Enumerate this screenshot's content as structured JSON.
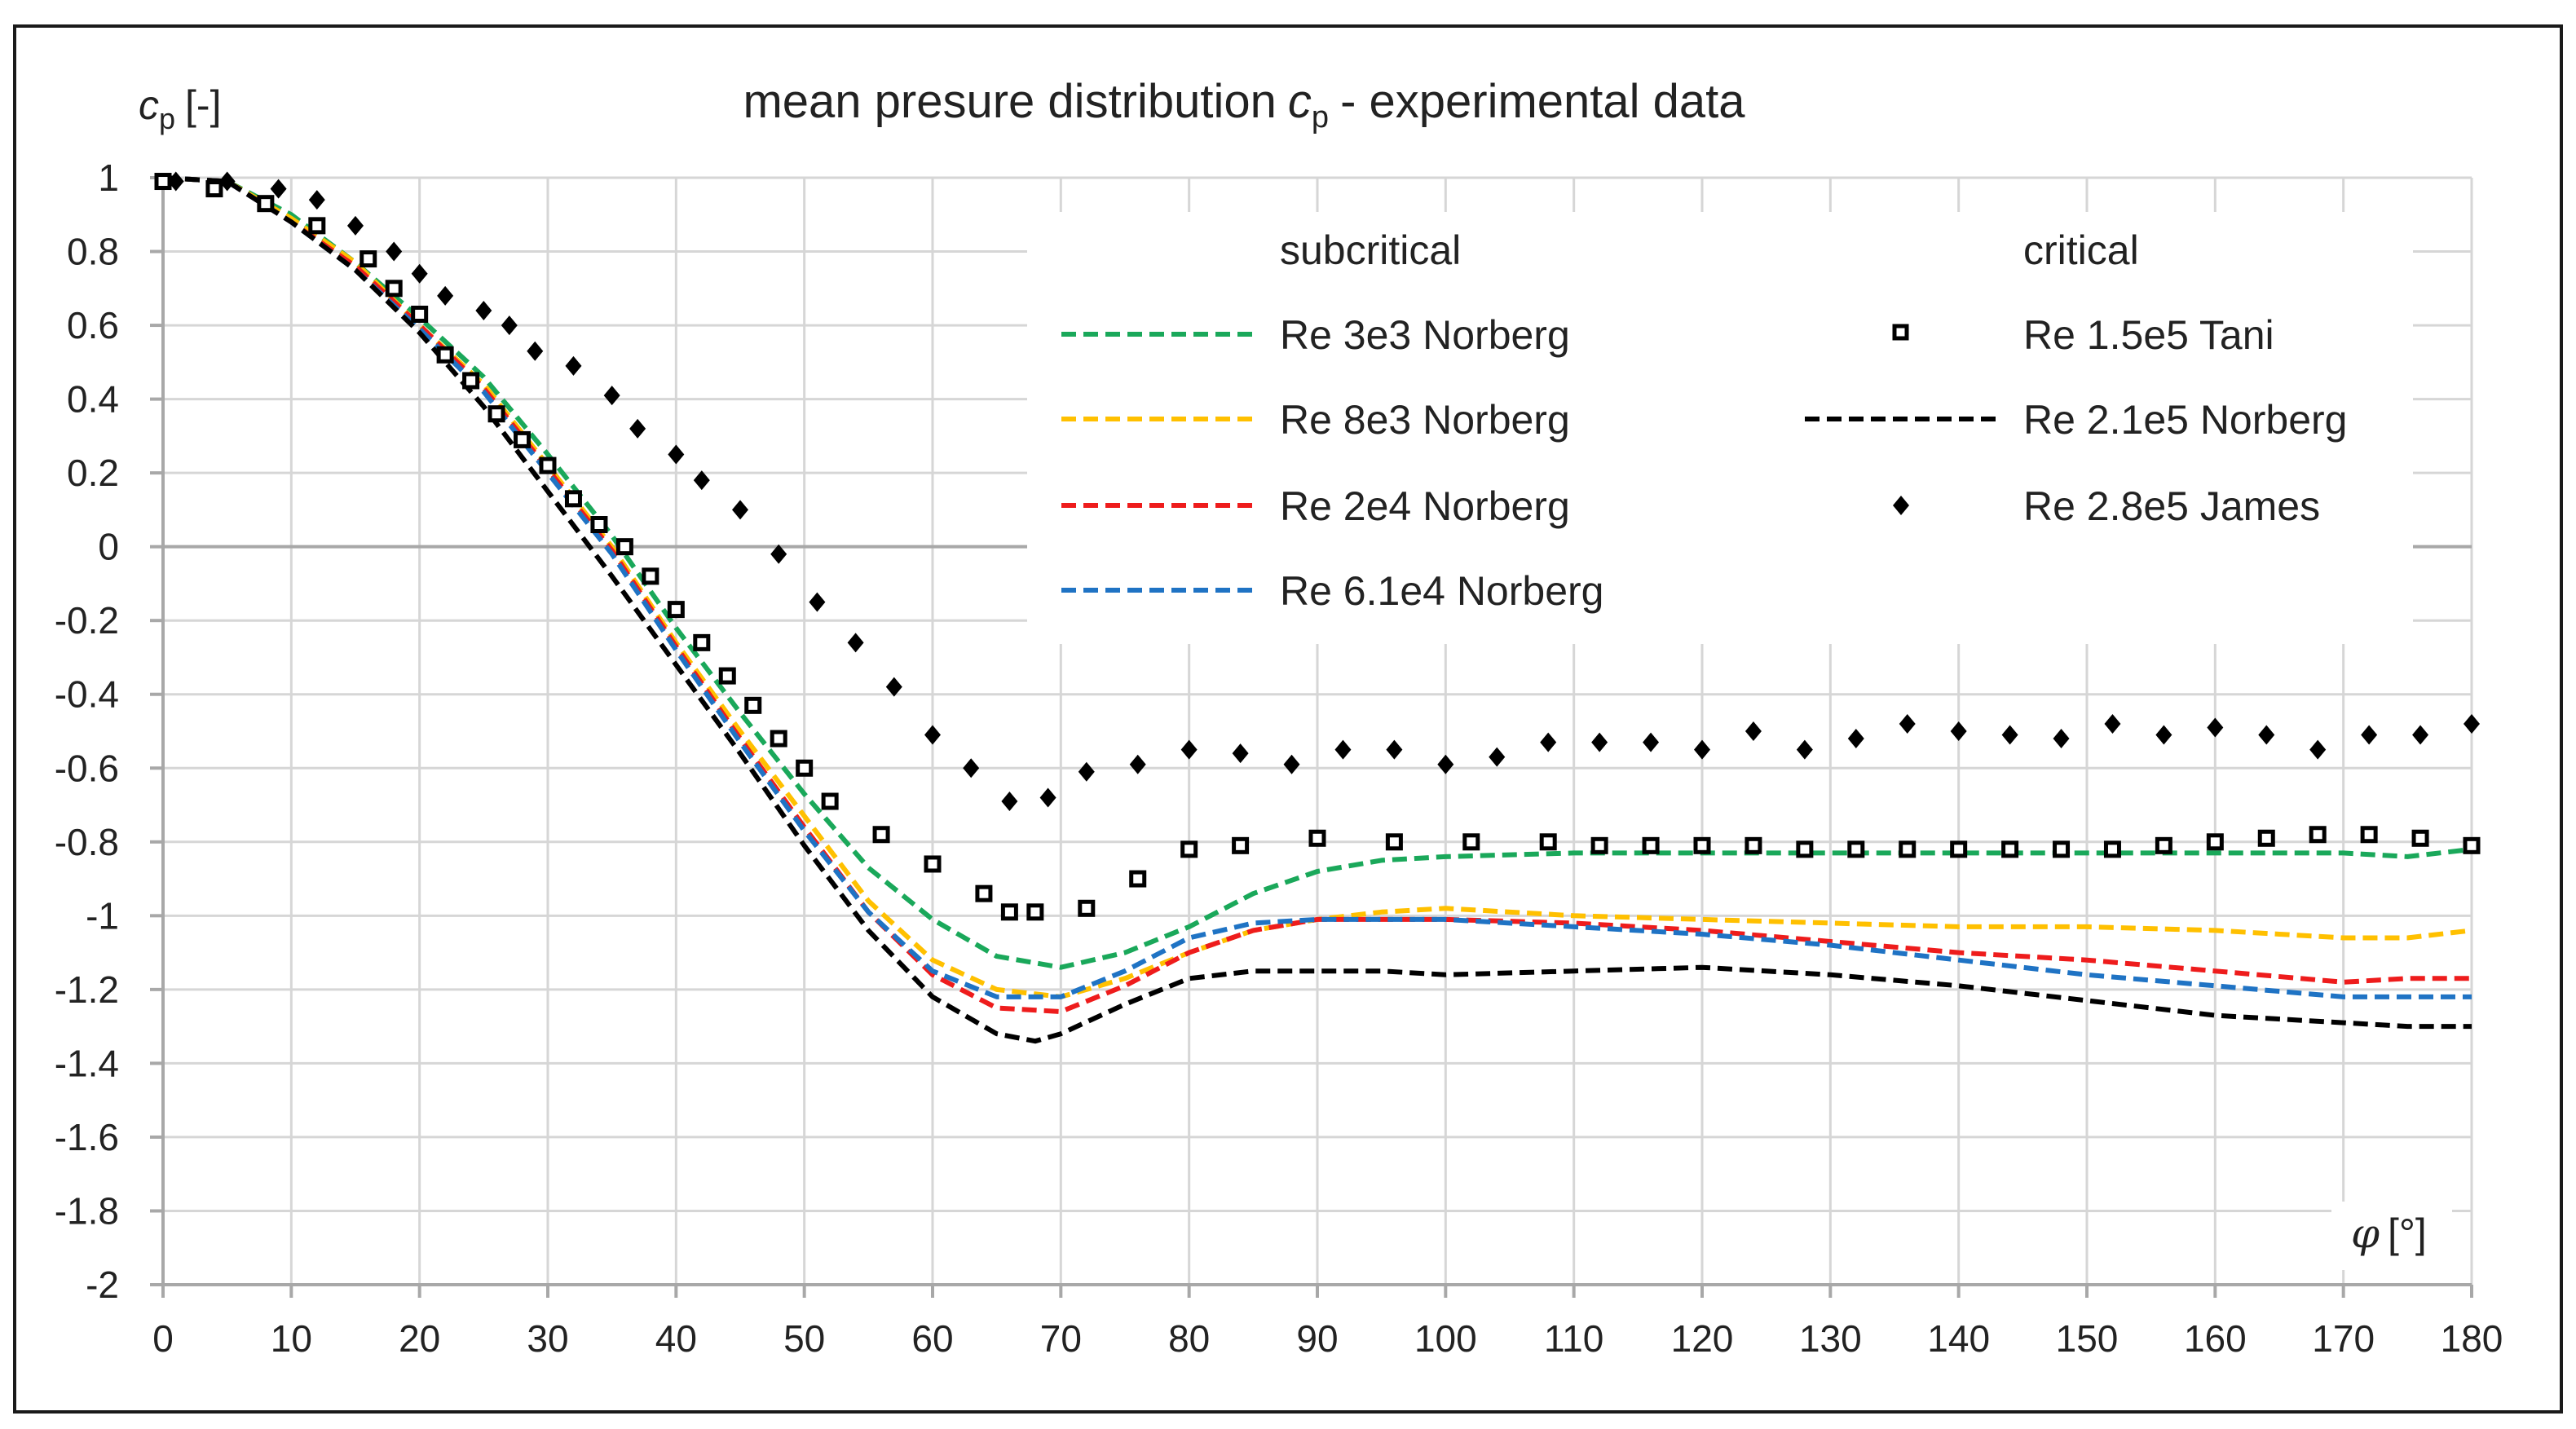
{
  "chart_data": {
    "type": "line",
    "title": "mean presure distribution",
    "title_symbol": "c",
    "title_symbol_sub": "p",
    "title_suffix": "- experimental data",
    "ylabel_symbol": "c",
    "ylabel_sub": "p",
    "ylabel_unit": "[-]",
    "xlabel_symbol": "φ",
    "xlabel_unit": "[°]",
    "xlim": [
      0,
      180
    ],
    "ylim": [
      -2,
      1
    ],
    "xticks": [
      0,
      10,
      20,
      30,
      40,
      50,
      60,
      70,
      80,
      90,
      100,
      110,
      120,
      130,
      140,
      150,
      160,
      170,
      180
    ],
    "yticks": [
      1,
      0.8,
      0.6,
      0.4,
      0.2,
      0,
      -0.2,
      -0.4,
      -0.6,
      -0.8,
      -1,
      -1.2,
      -1.4,
      -1.6,
      -1.8,
      -2
    ],
    "grid": true,
    "legend_groups": {
      "subcritical": "subcritical",
      "critical": "critical"
    },
    "colors": {
      "green": "#1aa85a",
      "yellow": "#ffc000",
      "red": "#ee1c1c",
      "blue": "#1f73c4",
      "black": "#000000",
      "grid": "#d6d6d6",
      "axis": "#a8a8a8"
    },
    "series": [
      {
        "name": "Re 3e3 Norberg",
        "group": "subcritical",
        "style": "dashed",
        "color": "#1aa85a",
        "x": [
          0,
          5,
          10,
          15,
          20,
          25,
          30,
          35,
          40,
          45,
          50,
          55,
          60,
          65,
          70,
          75,
          80,
          85,
          90,
          95,
          100,
          110,
          120,
          130,
          140,
          150,
          160,
          170,
          175,
          180
        ],
        "y": [
          1,
          0.99,
          0.9,
          0.77,
          0.62,
          0.46,
          0.25,
          0.03,
          -0.22,
          -0.45,
          -0.67,
          -0.87,
          -1.01,
          -1.11,
          -1.14,
          -1.1,
          -1.03,
          -0.94,
          -0.88,
          -0.85,
          -0.84,
          -0.83,
          -0.83,
          -0.83,
          -0.83,
          -0.83,
          -0.83,
          -0.83,
          -0.84,
          -0.82
        ]
      },
      {
        "name": "Re 8e3 Norberg",
        "group": "subcritical",
        "style": "dashed",
        "color": "#ffc000",
        "x": [
          0,
          5,
          10,
          15,
          20,
          25,
          30,
          35,
          40,
          45,
          50,
          55,
          60,
          65,
          70,
          75,
          80,
          85,
          90,
          95,
          100,
          110,
          120,
          130,
          140,
          150,
          160,
          170,
          175,
          180
        ],
        "y": [
          1,
          0.99,
          0.89,
          0.77,
          0.6,
          0.44,
          0.22,
          0,
          -0.26,
          -0.5,
          -0.73,
          -0.96,
          -1.12,
          -1.2,
          -1.22,
          -1.17,
          -1.1,
          -1.04,
          -1.01,
          -0.99,
          -0.98,
          -1,
          -1.01,
          -1.02,
          -1.03,
          -1.03,
          -1.04,
          -1.06,
          -1.06,
          -1.04
        ]
      },
      {
        "name": "Re 2e4 Norberg",
        "group": "subcritical",
        "style": "dashed",
        "color": "#ee1c1c",
        "x": [
          0,
          5,
          10,
          15,
          20,
          25,
          30,
          35,
          40,
          45,
          50,
          55,
          60,
          65,
          70,
          75,
          80,
          85,
          90,
          95,
          100,
          110,
          120,
          130,
          140,
          150,
          160,
          170,
          175,
          180
        ],
        "y": [
          1,
          0.99,
          0.88,
          0.76,
          0.6,
          0.43,
          0.21,
          -0.01,
          -0.27,
          -0.52,
          -0.76,
          -0.99,
          -1.16,
          -1.25,
          -1.26,
          -1.19,
          -1.1,
          -1.04,
          -1.01,
          -1.01,
          -1.01,
          -1.02,
          -1.04,
          -1.07,
          -1.1,
          -1.12,
          -1.15,
          -1.18,
          -1.17,
          -1.17
        ]
      },
      {
        "name": "Re 6.1e4 Norberg",
        "group": "subcritical",
        "style": "dashed",
        "color": "#1f73c4",
        "x": [
          0,
          5,
          10,
          15,
          20,
          25,
          30,
          35,
          40,
          45,
          50,
          55,
          60,
          65,
          70,
          75,
          80,
          85,
          90,
          95,
          100,
          110,
          120,
          130,
          140,
          150,
          160,
          170,
          175,
          180
        ],
        "y": [
          1,
          0.99,
          0.88,
          0.75,
          0.59,
          0.42,
          0.2,
          -0.02,
          -0.28,
          -0.53,
          -0.77,
          -0.99,
          -1.15,
          -1.22,
          -1.22,
          -1.15,
          -1.06,
          -1.02,
          -1.01,
          -1.01,
          -1.01,
          -1.03,
          -1.05,
          -1.08,
          -1.12,
          -1.16,
          -1.19,
          -1.22,
          -1.22,
          -1.22
        ]
      },
      {
        "name": "Re 1.5e5 Tani",
        "group": "critical",
        "style": "square-marker",
        "color": "#000000",
        "x": [
          0,
          4,
          8,
          12,
          16,
          18,
          20,
          22,
          24,
          26,
          28,
          30,
          32,
          34,
          36,
          38,
          40,
          42,
          44,
          46,
          48,
          50,
          52,
          56,
          60,
          64,
          66,
          68,
          72,
          76,
          80,
          84,
          90,
          96,
          102,
          108,
          112,
          116,
          120,
          124,
          128,
          132,
          136,
          140,
          144,
          148,
          152,
          156,
          160,
          164,
          168,
          172,
          176,
          180
        ],
        "y": [
          0.99,
          0.97,
          0.93,
          0.87,
          0.78,
          0.7,
          0.63,
          0.52,
          0.45,
          0.36,
          0.29,
          0.22,
          0.13,
          0.06,
          0,
          -0.08,
          -0.17,
          -0.26,
          -0.35,
          -0.43,
          -0.52,
          -0.6,
          -0.69,
          -0.78,
          -0.86,
          -0.94,
          -0.99,
          -0.99,
          -0.98,
          -0.9,
          -0.82,
          -0.81,
          -0.79,
          -0.8,
          -0.8,
          -0.8,
          -0.81,
          -0.81,
          -0.81,
          -0.81,
          -0.82,
          -0.82,
          -0.82,
          -0.82,
          -0.82,
          -0.82,
          -0.82,
          -0.81,
          -0.8,
          -0.79,
          -0.78,
          -0.78,
          -0.79,
          -0.81
        ]
      },
      {
        "name": "Re 2.1e5 Norberg",
        "group": "critical",
        "style": "dashed",
        "color": "#000000",
        "x": [
          0,
          5,
          10,
          15,
          20,
          25,
          30,
          35,
          40,
          45,
          50,
          55,
          60,
          65,
          68,
          70,
          75,
          80,
          85,
          90,
          95,
          100,
          110,
          120,
          130,
          140,
          150,
          160,
          170,
          175,
          180
        ],
        "y": [
          1,
          0.99,
          0.88,
          0.75,
          0.58,
          0.38,
          0.15,
          -0.08,
          -0.32,
          -0.56,
          -0.81,
          -1.04,
          -1.22,
          -1.32,
          -1.34,
          -1.32,
          -1.24,
          -1.17,
          -1.15,
          -1.15,
          -1.15,
          -1.16,
          -1.15,
          -1.14,
          -1.16,
          -1.19,
          -1.23,
          -1.27,
          -1.29,
          -1.3,
          -1.3
        ]
      },
      {
        "name": "Re 2.8e5 James",
        "group": "critical",
        "style": "diamond-marker",
        "color": "#000000",
        "x": [
          1,
          5,
          9,
          12,
          15,
          18,
          20,
          22,
          25,
          27,
          29,
          32,
          35,
          37,
          40,
          42,
          45,
          48,
          51,
          54,
          57,
          60,
          63,
          66,
          69,
          72,
          76,
          80,
          84,
          88,
          92,
          96,
          100,
          104,
          108,
          112,
          116,
          120,
          124,
          128,
          132,
          136,
          140,
          144,
          148,
          152,
          156,
          160,
          164,
          168,
          172,
          176,
          180
        ],
        "y": [
          0.99,
          0.99,
          0.97,
          0.94,
          0.87,
          0.8,
          0.74,
          0.68,
          0.64,
          0.6,
          0.53,
          0.49,
          0.41,
          0.32,
          0.25,
          0.18,
          0.1,
          -0.02,
          -0.15,
          -0.26,
          -0.38,
          -0.51,
          -0.6,
          -0.69,
          -0.68,
          -0.61,
          -0.59,
          -0.55,
          -0.56,
          -0.59,
          -0.55,
          -0.55,
          -0.59,
          -0.57,
          -0.53,
          -0.53,
          -0.53,
          -0.55,
          -0.5,
          -0.55,
          -0.52,
          -0.48,
          -0.5,
          -0.51,
          -0.52,
          -0.48,
          -0.51,
          -0.49,
          -0.51,
          -0.55,
          -0.51,
          -0.51,
          -0.48
        ]
      }
    ]
  }
}
